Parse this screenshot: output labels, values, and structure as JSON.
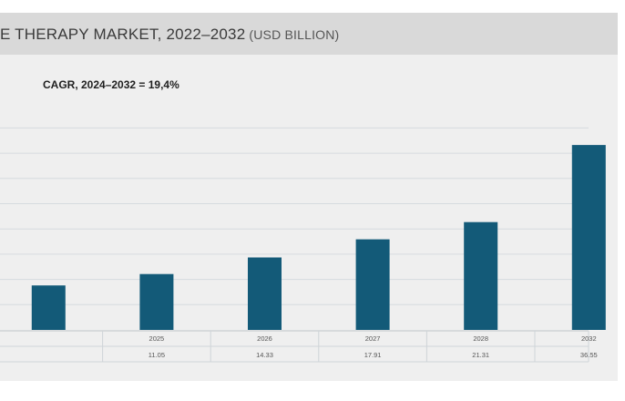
{
  "header": {
    "title": "E THERAPY MARKET, 2022–2032",
    "unit": "(USD BILLION)"
  },
  "annotation": {
    "cagr": "CAGR, 2024–2032 = 19,4%"
  },
  "chart_data": {
    "type": "bar",
    "title": "E THERAPY MARKET, 2022–2032 (USD BILLION)",
    "subtitle": "CAGR, 2024–2032 = 19,4%",
    "categories": [
      "",
      "2025",
      "2026",
      "2027",
      "2028",
      "2032"
    ],
    "values": [
      null,
      11.05,
      14.33,
      17.91,
      21.31,
      36.55
    ],
    "value_labels": [
      "",
      "11.05",
      "14.33",
      "17.91",
      "21.31",
      "36.55"
    ],
    "partial_first_bar_estimate": 8.8,
    "ylim": [
      0,
      40
    ],
    "grid": true,
    "legend": "none",
    "bar_color": "#135a78",
    "xlabel": "",
    "ylabel": ""
  }
}
